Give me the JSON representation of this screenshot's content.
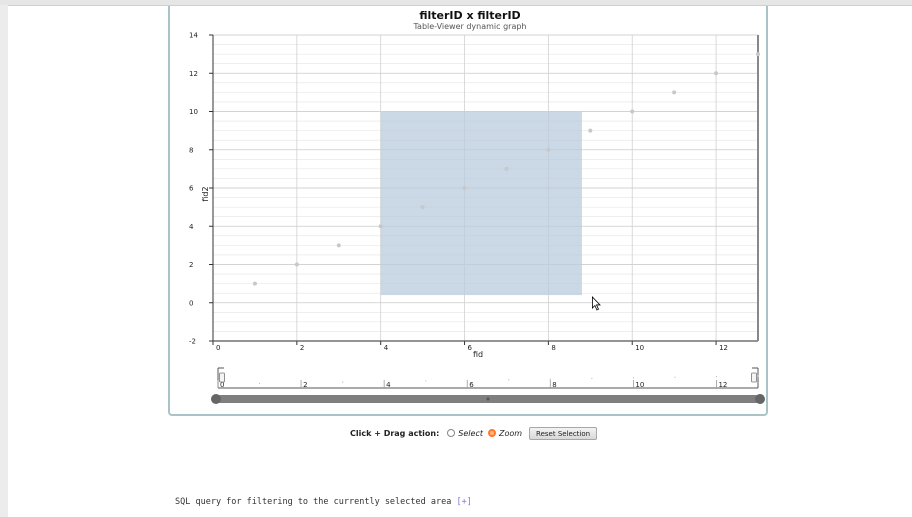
{
  "chart_data": {
    "type": "scatter",
    "title": "filterID x filterID",
    "subtitle": "Table-Viewer dynamic graph",
    "xlabel": "fid",
    "ylabel": "fid2",
    "xlim": [
      0,
      13
    ],
    "ylim": [
      -2,
      14
    ],
    "x_ticks": [
      0,
      2,
      4,
      6,
      8,
      10,
      12
    ],
    "y_ticks": [
      -2,
      0,
      2,
      4,
      6,
      8,
      10,
      12,
      14
    ],
    "grid": true,
    "points": [
      {
        "x": 1,
        "y": 1
      },
      {
        "x": 2,
        "y": 2
      },
      {
        "x": 3,
        "y": 3
      },
      {
        "x": 4,
        "y": 4
      },
      {
        "x": 5,
        "y": 5
      },
      {
        "x": 6,
        "y": 6
      },
      {
        "x": 7,
        "y": 7
      },
      {
        "x": 8,
        "y": 8
      },
      {
        "x": 9,
        "y": 9
      },
      {
        "x": 10,
        "y": 10
      },
      {
        "x": 11,
        "y": 11
      },
      {
        "x": 12,
        "y": 12
      },
      {
        "x": 13,
        "y": 13
      }
    ],
    "selection": {
      "x": [
        4,
        8.8
      ],
      "y": [
        0.4,
        10
      ]
    },
    "navigator": {
      "ticks": [
        0,
        2,
        4,
        6,
        8,
        10,
        12
      ],
      "range": [
        0,
        13
      ]
    }
  },
  "controls": {
    "action_label": "Click + Drag action:",
    "select_label": "Select",
    "zoom_label": "Zoom",
    "selected_mode": "zoom",
    "reset_label": "Reset Selection"
  },
  "sql": {
    "text": "SQL query for filtering to the currently selected area",
    "toggle": "[+]"
  },
  "colors": {
    "selection_fill": "#b9cbdc",
    "point": "#c8c8c8",
    "panel_border": "#a9c3c7",
    "zoom_radio": "#ff7a2a"
  }
}
